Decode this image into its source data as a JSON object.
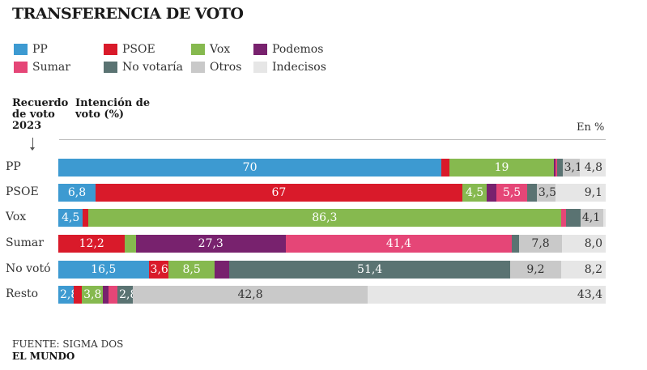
{
  "chart_data": {
    "type": "bar",
    "orientation": "horizontal",
    "stacked": true,
    "title": "TRANSFERENCIA DE VOTO",
    "row_header": "Recuerdo de voto 2023",
    "column_header": "Intención de voto (%)",
    "unit_label": "En %",
    "xlim": [
      0,
      100
    ],
    "categories": [
      "PP",
      "PSOE",
      "Vox",
      "Sumar",
      "No votó",
      "Resto"
    ],
    "series": [
      {
        "name": "PP",
        "color": "#3d9ad1",
        "values": [
          70,
          6.8,
          4.5,
          0,
          16.5,
          2.8
        ],
        "labels": [
          "70",
          "6,8",
          "4,5",
          "",
          "16,5",
          "2,8"
        ]
      },
      {
        "name": "PSOE",
        "color": "#d91a2a",
        "values": [
          1.5,
          67,
          1,
          12.2,
          3.6,
          1.5
        ],
        "labels": [
          "",
          "67",
          "",
          "12,2",
          "3,6",
          ""
        ]
      },
      {
        "name": "Vox",
        "color": "#86b94f",
        "values": [
          19,
          4.5,
          86.3,
          2,
          8.5,
          3.8
        ],
        "labels": [
          "19",
          "4,5",
          "86,3",
          "",
          "8,5",
          "3,8"
        ]
      },
      {
        "name": "Podemos",
        "color": "#78226e",
        "values": [
          0.3,
          1.8,
          0,
          27.3,
          2.6,
          1
        ],
        "labels": [
          "",
          "",
          "",
          "27,3",
          "",
          ""
        ]
      },
      {
        "name": "Sumar",
        "color": "#e54677",
        "values": [
          0.3,
          5.5,
          1,
          41.4,
          0,
          1.7
        ],
        "labels": [
          "",
          "5,5",
          "",
          "41,4",
          "",
          ""
        ]
      },
      {
        "name": "No votaría",
        "color": "#5a7372",
        "values": [
          1,
          1.8,
          2.6,
          1.3,
          51.4,
          2.8
        ],
        "labels": [
          "",
          "",
          "",
          "",
          "51,4",
          "2,8"
        ]
      },
      {
        "name": "Otros",
        "color": "#c9c9c9",
        "values": [
          3.1,
          3.5,
          4.1,
          7.8,
          9.2,
          42.8
        ],
        "labels": [
          "3,1",
          "3,5",
          "4,1",
          "7,8",
          "9,2",
          "42,8"
        ]
      },
      {
        "name": "Indecisos",
        "color": "#e6e6e6",
        "values": [
          4.8,
          9.1,
          0.5,
          8.0,
          8.2,
          43.4
        ],
        "labels": [
          "4,8",
          "9,1",
          "",
          "8,0",
          "8,2",
          "43,4"
        ]
      }
    ]
  },
  "footer": {
    "source": "FUENTE: SIGMA DOS",
    "brand": "EL MUNDO"
  }
}
